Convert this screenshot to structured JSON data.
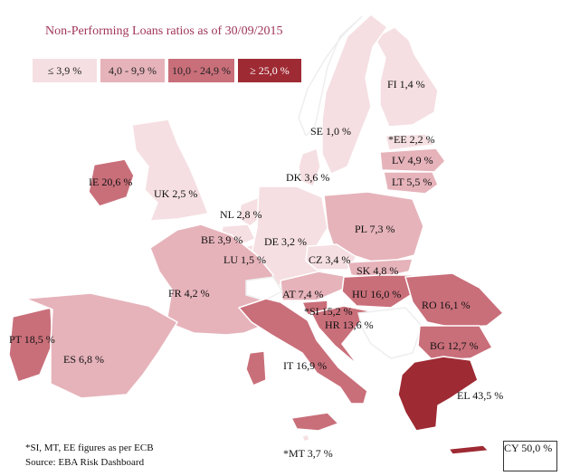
{
  "title": "Non-Performing Loans ratios as of 30/09/2015",
  "legend": [
    {
      "label": "≤ 3,9 %",
      "color": "#f5dfe2"
    },
    {
      "label": "4,0 - 9,9 %",
      "color": "#e6b3ba"
    },
    {
      "label": "10,0 - 24,9 %",
      "color": "#c96f7a"
    },
    {
      "label": "≥ 25,0 %",
      "color": "#9e2a33"
    }
  ],
  "countries": [
    {
      "code": "FI",
      "label": "FI 1,4 %",
      "value": 1.4,
      "band": 0
    },
    {
      "code": "SE",
      "label": "SE 1,0 %",
      "value": 1.0,
      "band": 0
    },
    {
      "code": "EE",
      "label": "*EE 2,2 %",
      "value": 2.2,
      "band": 0
    },
    {
      "code": "LV",
      "label": "LV 4,9 %",
      "value": 4.9,
      "band": 1
    },
    {
      "code": "LT",
      "label": "LT 5,5 %",
      "value": 5.5,
      "band": 1
    },
    {
      "code": "DK",
      "label": "DK 3,6 %",
      "value": 3.6,
      "band": 0
    },
    {
      "code": "IE",
      "label": "IE 20,6 %",
      "value": 20.6,
      "band": 2
    },
    {
      "code": "UK",
      "label": "UK 2,5 %",
      "value": 2.5,
      "band": 0
    },
    {
      "code": "NL",
      "label": "NL 2,8 %",
      "value": 2.8,
      "band": 0
    },
    {
      "code": "PL",
      "label": "PL 7,3 %",
      "value": 7.3,
      "band": 1
    },
    {
      "code": "BE",
      "label": "BE 3,9 %",
      "value": 3.9,
      "band": 0
    },
    {
      "code": "DE",
      "label": "DE 3,2 %",
      "value": 3.2,
      "band": 0
    },
    {
      "code": "LU",
      "label": "LU 1,5 %",
      "value": 1.5,
      "band": 0
    },
    {
      "code": "CZ",
      "label": "CZ 3,4 %",
      "value": 3.4,
      "band": 0
    },
    {
      "code": "SK",
      "label": "SK 4,8 %",
      "value": 4.8,
      "band": 1
    },
    {
      "code": "FR",
      "label": "FR 4,2 %",
      "value": 4.2,
      "band": 1
    },
    {
      "code": "AT",
      "label": "AT 7,4 %",
      "value": 7.4,
      "band": 1
    },
    {
      "code": "HU",
      "label": "HU 16,0 %",
      "value": 16.0,
      "band": 2
    },
    {
      "code": "RO",
      "label": "RO 16,1 %",
      "value": 16.1,
      "band": 2
    },
    {
      "code": "SI",
      "label": "*SI 15,2 %",
      "value": 15.2,
      "band": 2
    },
    {
      "code": "HR",
      "label": "HR 13,6 %",
      "value": 13.6,
      "band": 2
    },
    {
      "code": "PT",
      "label": "PT 18,5 %",
      "value": 18.5,
      "band": 2
    },
    {
      "code": "BG",
      "label": "BG 12,7 %",
      "value": 12.7,
      "band": 2
    },
    {
      "code": "ES",
      "label": "ES 6,8 %",
      "value": 6.8,
      "band": 1
    },
    {
      "code": "IT",
      "label": "IT 16,9 %",
      "value": 16.9,
      "band": 2
    },
    {
      "code": "EL",
      "label": "EL 43,5 %",
      "value": 43.5,
      "band": 3
    },
    {
      "code": "MT",
      "label": "*MT 3,7 %",
      "value": 3.7,
      "band": 0
    },
    {
      "code": "CY",
      "label": "CY 50,0 %",
      "value": 50.0,
      "band": 3
    }
  ],
  "notes": {
    "ecb": "*SI, MT, EE figures as per ECB",
    "source": "Source: EBA Risk Dashboard"
  }
}
